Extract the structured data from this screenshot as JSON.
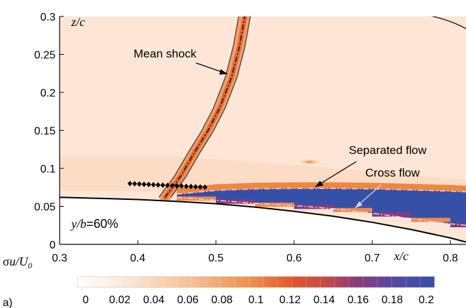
{
  "chart_data": {
    "type": "heatmap",
    "x_axis": {
      "label": "x/c",
      "range": [
        0.3,
        0.82
      ],
      "ticks": [
        "0.3",
        "0.4",
        "0.5",
        "0.6",
        "0.7",
        "0.8"
      ]
    },
    "y_axis": {
      "label": "z/c",
      "range": [
        0,
        0.3
      ],
      "ticks": [
        "0",
        "0.05",
        "0.1",
        "0.15",
        "0.2",
        "0.25",
        "0.3"
      ]
    },
    "section_label": "y/b = 60%",
    "annotations": {
      "mean_shock": "Mean shock",
      "separated_flow": "Separated flow",
      "cross_flow": "Cross flow"
    },
    "colorbar": {
      "label": "σu/U0",
      "min": 0,
      "max": 0.2,
      "ticks": [
        "0",
        "0.02",
        "0.04",
        "0.06",
        "0.08",
        "0.1",
        "0.12",
        "0.14",
        "0.16",
        "0.18",
        "0.2"
      ]
    },
    "mean_shock_line": {
      "x": [
        0.435,
        0.455,
        0.472,
        0.49,
        0.505,
        0.52,
        0.53,
        0.537
      ],
      "y": [
        0.062,
        0.09,
        0.12,
        0.15,
        0.18,
        0.22,
        0.26,
        0.3
      ]
    },
    "diamond_markers": {
      "x": [
        0.39,
        0.396,
        0.402,
        0.408,
        0.414,
        0.42,
        0.426,
        0.432,
        0.438,
        0.444,
        0.45,
        0.456,
        0.462,
        0.468,
        0.474,
        0.48,
        0.486
      ],
      "y": [
        0.08,
        0.0797,
        0.0794,
        0.0791,
        0.0788,
        0.0785,
        0.0782,
        0.0779,
        0.0776,
        0.0773,
        0.077,
        0.0767,
        0.0764,
        0.0761,
        0.0758,
        0.0755,
        0.0752
      ]
    },
    "wall_upper": {
      "x": [
        0.3,
        0.35,
        0.4,
        0.45,
        0.5,
        0.55,
        0.6,
        0.65,
        0.7,
        0.75,
        0.8,
        0.82
      ],
      "y": [
        0.062,
        0.0605,
        0.059,
        0.0565,
        0.0535,
        0.049,
        0.0435,
        0.037,
        0.029,
        0.0195,
        0.0085,
        0.003
      ]
    },
    "separation_top": {
      "x": [
        0.45,
        0.5,
        0.55,
        0.6,
        0.65,
        0.7,
        0.75,
        0.8,
        0.82
      ],
      "y": [
        0.066,
        0.071,
        0.073,
        0.0735,
        0.0735,
        0.073,
        0.0715,
        0.07,
        0.069
      ]
    },
    "separation_bottom": {
      "x": [
        0.45,
        0.5,
        0.55,
        0.6,
        0.65,
        0.7,
        0.75,
        0.8,
        0.82
      ],
      "y": [
        0.062,
        0.058,
        0.054,
        0.051,
        0.047,
        0.041,
        0.034,
        0.027,
        0.025
      ]
    },
    "grid": false
  },
  "panel_label": "a)",
  "colors": {
    "background": "#fde6d6",
    "shock_core": "#e86a2a",
    "separated": "#3650a8",
    "edge_orange": "#f08a4a",
    "edge_purple": "#8a3a7a"
  }
}
